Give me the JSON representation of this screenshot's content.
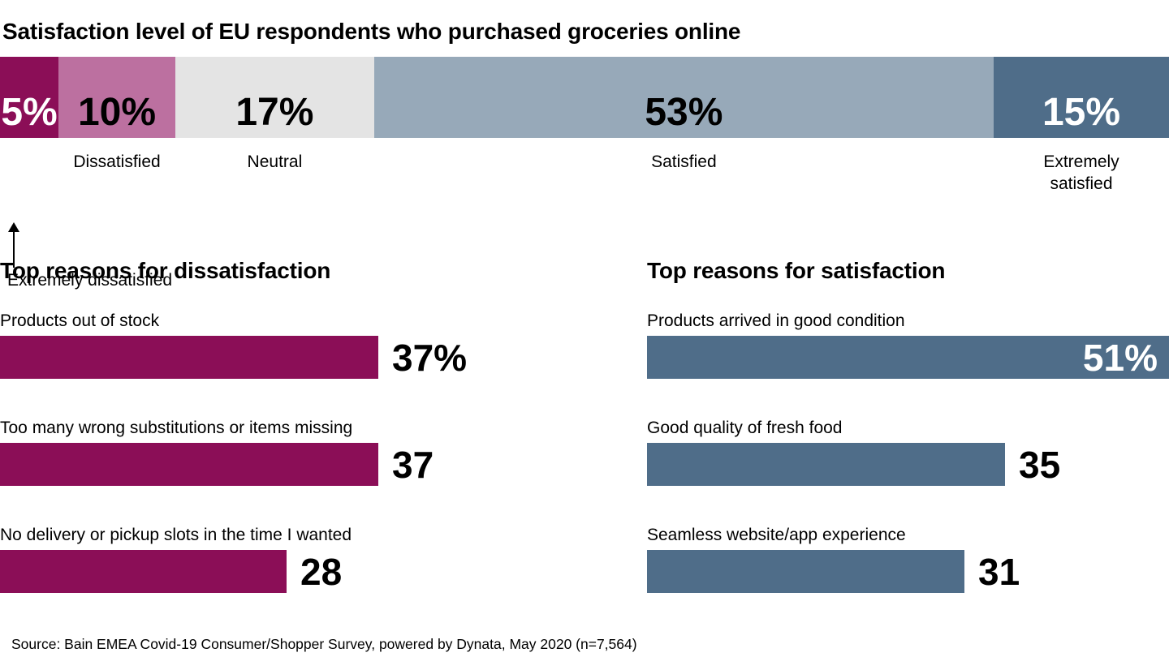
{
  "title": "Satisfaction level of EU respondents who purchased groceries online",
  "source": "Source: Bain EMEA Covid-19 Consumer/Shopper Survey, powered by Dynata, May 2020 (n=7,564)",
  "colors": {
    "magenta": "#8B0E57",
    "mauve": "#BC70A0",
    "neutral_gray": "#E4E4E4",
    "blue_light": "#97A9B9",
    "blue_dark": "#4F6D89",
    "white": "#FFFFFF",
    "black": "#000000"
  },
  "chart_data": [
    {
      "type": "bar",
      "subtype": "stacked-horizontal-100pct",
      "title": "Satisfaction level of EU respondents who purchased groceries online",
      "xlim": [
        0,
        100
      ],
      "grid": false,
      "legend_position": "labels-below-segments",
      "segments": [
        {
          "label": "Extremely dissatisfied",
          "value": 5,
          "value_label": "5%",
          "color": "#8B0E57",
          "text_color": "#FFFFFF",
          "label_placement": "arrow-below",
          "wrap": false
        },
        {
          "label": "Dissatisfied",
          "value": 10,
          "value_label": "10%",
          "color": "#BC70A0",
          "text_color": "#000000",
          "label_placement": "below",
          "wrap": false
        },
        {
          "label": "Neutral",
          "value": 17,
          "value_label": "17%",
          "color": "#E4E4E4",
          "text_color": "#000000",
          "label_placement": "below",
          "wrap": false
        },
        {
          "label": "Satisfied",
          "value": 53,
          "value_label": "53%",
          "color": "#97A9B9",
          "text_color": "#000000",
          "label_placement": "below",
          "wrap": false
        },
        {
          "label": "Extremely satisfied",
          "value": 15,
          "value_label": "15%",
          "color": "#4F6D89",
          "text_color": "#FFFFFF",
          "label_placement": "below",
          "wrap": true
        }
      ]
    },
    {
      "type": "bar",
      "subtype": "horizontal",
      "title": "Top reasons for dissatisfaction",
      "color": "#8B0E57",
      "xlim": [
        0,
        51
      ],
      "grid": false,
      "bars": [
        {
          "label": "Products out of stock",
          "value": 37,
          "value_label": "37%",
          "label_position": "outside"
        },
        {
          "label": "Too many wrong substitutions or items missing",
          "value": 37,
          "value_label": "37",
          "label_position": "outside"
        },
        {
          "label": "No delivery or pickup slots in the time I wanted",
          "value": 28,
          "value_label": "28",
          "label_position": "outside"
        }
      ]
    },
    {
      "type": "bar",
      "subtype": "horizontal",
      "title": "Top reasons for satisfaction",
      "color": "#4F6D89",
      "xlim": [
        0,
        51
      ],
      "grid": false,
      "bars": [
        {
          "label": "Products arrived in good condition",
          "value": 51,
          "value_label": "51%",
          "label_position": "inside"
        },
        {
          "label": "Good quality of fresh food",
          "value": 35,
          "value_label": "35",
          "label_position": "outside"
        },
        {
          "label": "Seamless website/app experience",
          "value": 31,
          "value_label": "31",
          "label_position": "outside"
        }
      ]
    }
  ]
}
